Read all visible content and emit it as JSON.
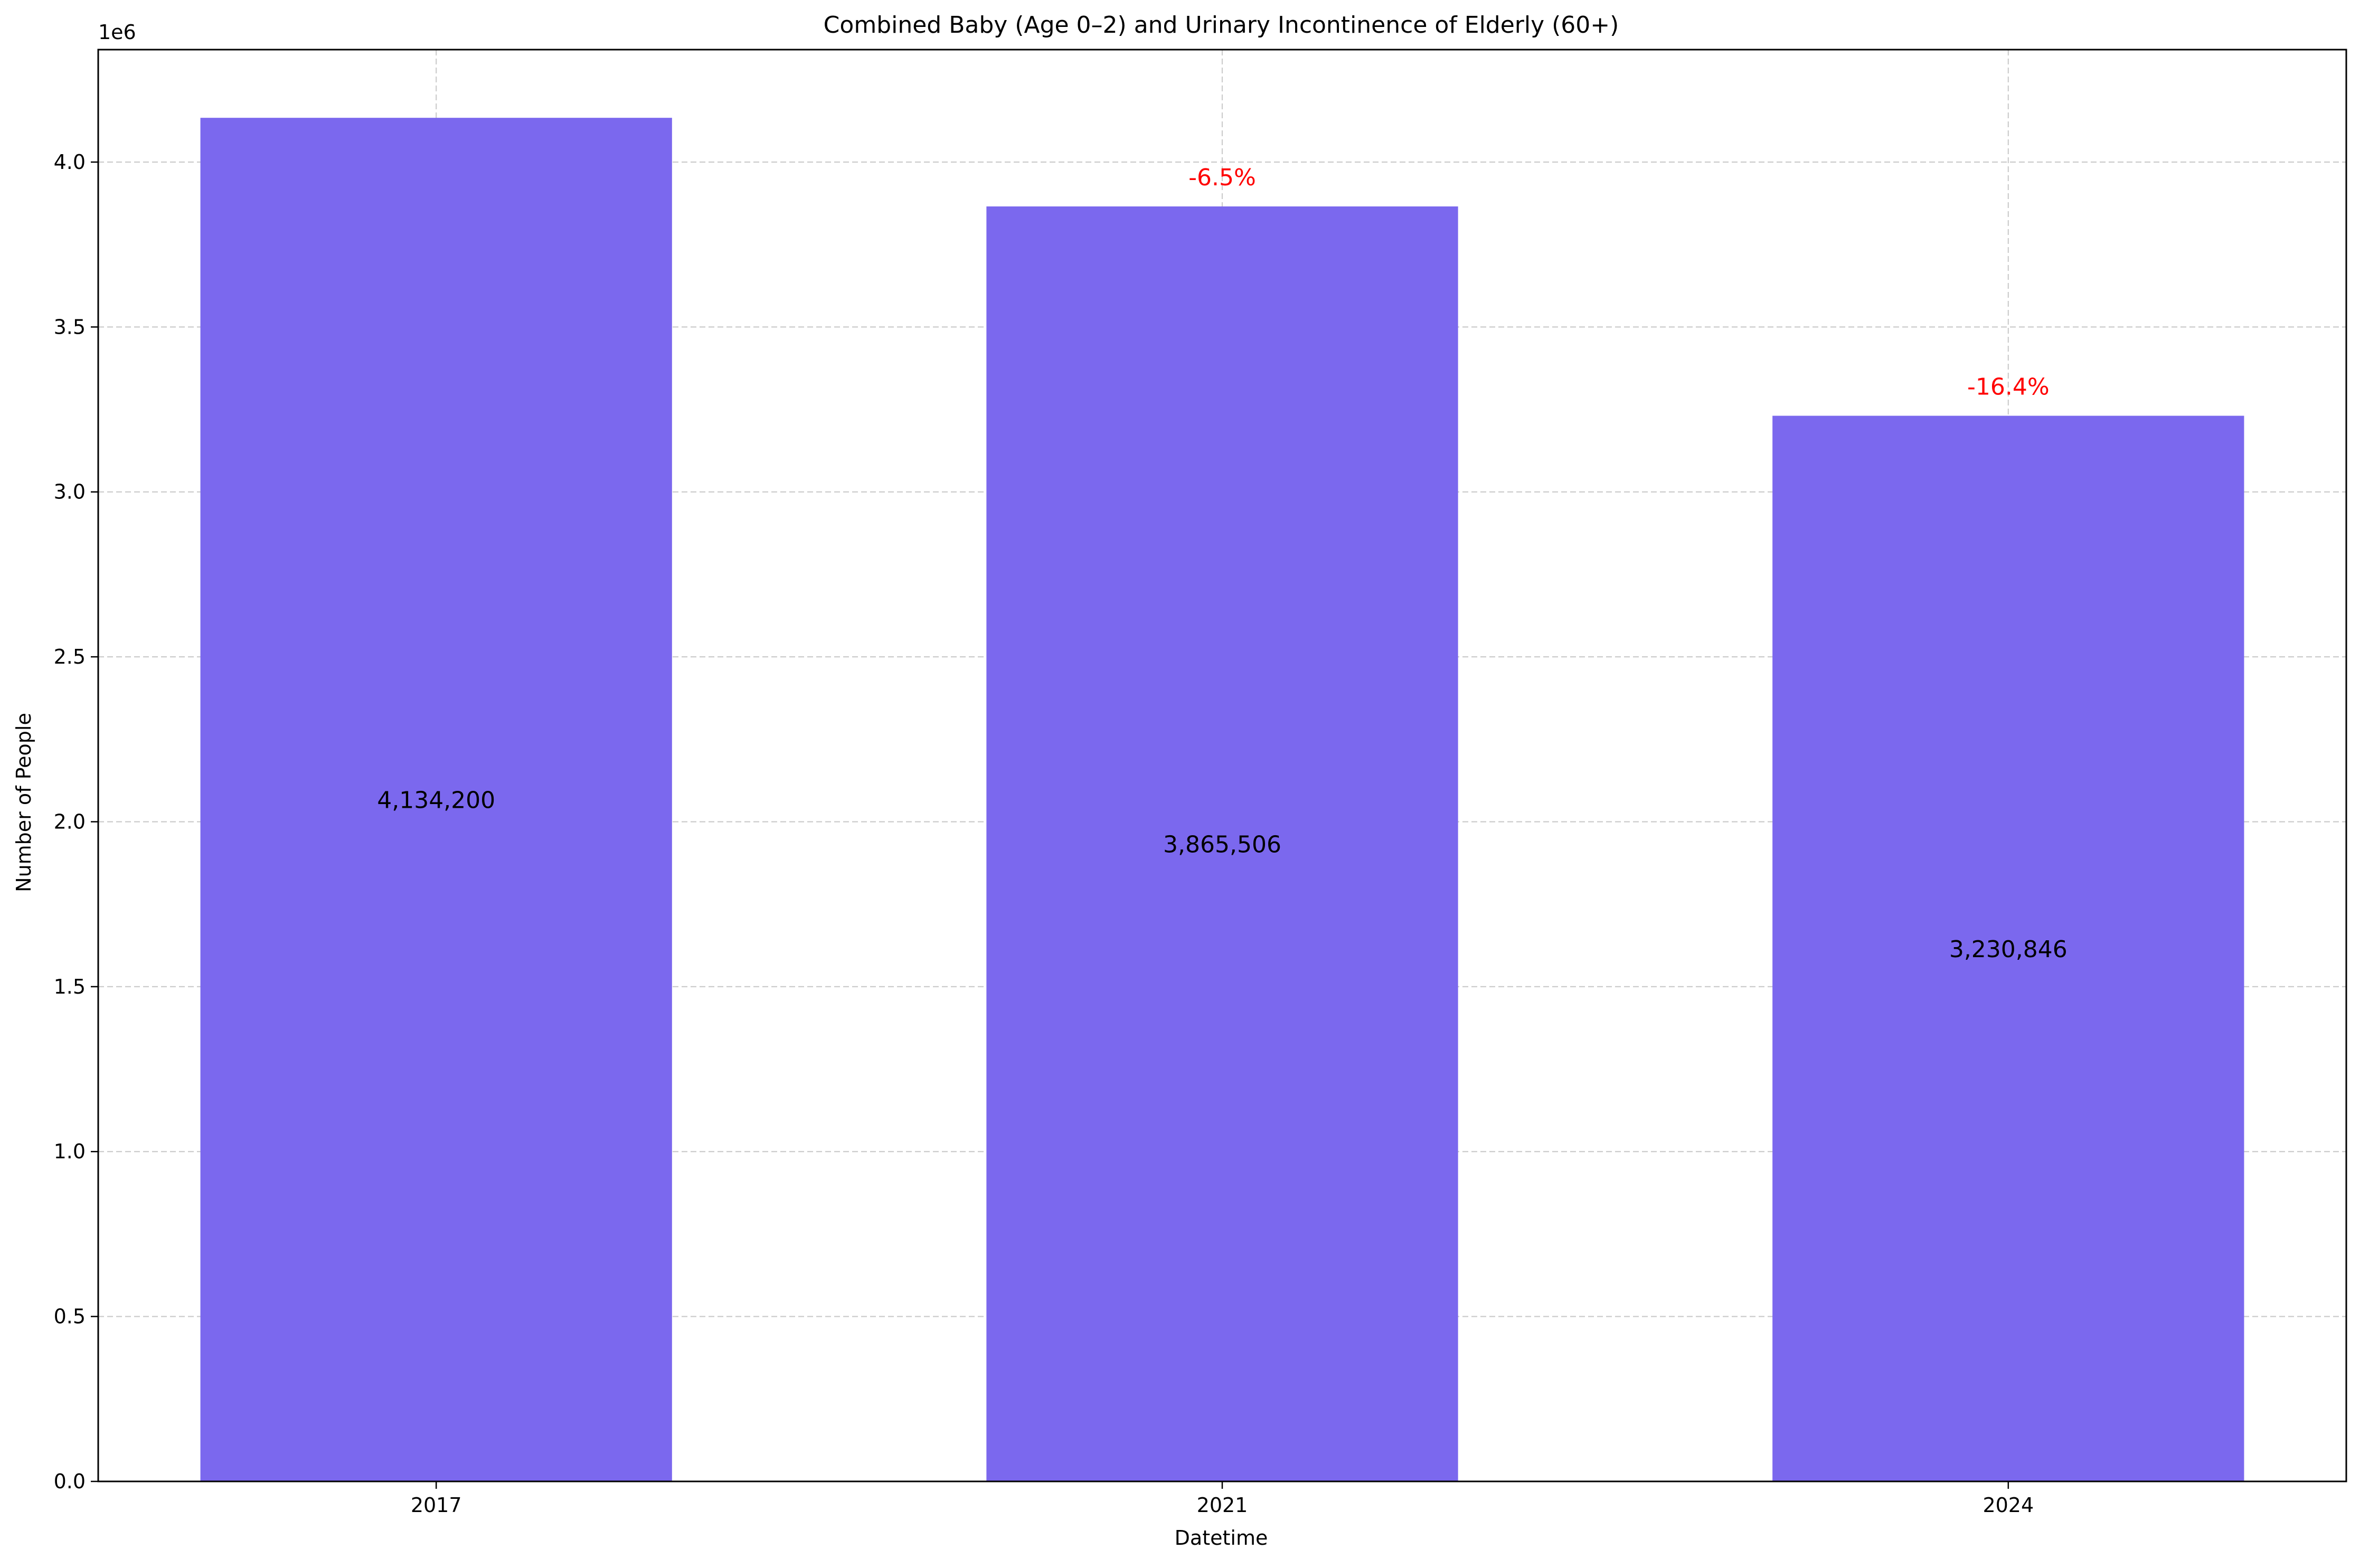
{
  "chart_data": {
    "type": "bar",
    "title": "Combined Baby (Age 0–2) and Urinary Incontinence of Elderly (60+)",
    "xlabel": "Datetime",
    "ylabel": "Number of People",
    "y_offset_label": "1e6",
    "categories": [
      "2017",
      "2021",
      "2024"
    ],
    "values": [
      4134200,
      3865506,
      3230846
    ],
    "value_labels": [
      "4,134,200",
      "3,865,506",
      "3,230,846"
    ],
    "change_labels": [
      "",
      "-6.5%",
      "-16.4%"
    ],
    "ylim": [
      0,
      4340910
    ],
    "yticks": [
      0,
      500000,
      1000000,
      1500000,
      2000000,
      2500000,
      3000000,
      3500000,
      4000000
    ],
    "ytick_labels": [
      "0.0",
      "0.5",
      "1.0",
      "1.5",
      "2.0",
      "2.5",
      "3.0",
      "3.5",
      "4.0"
    ],
    "grid": true,
    "legend": "none",
    "colors": {
      "bar": "#7b68ee",
      "change_label": "#ff0000",
      "grid": "#cccccc",
      "axis": "#000000"
    }
  }
}
